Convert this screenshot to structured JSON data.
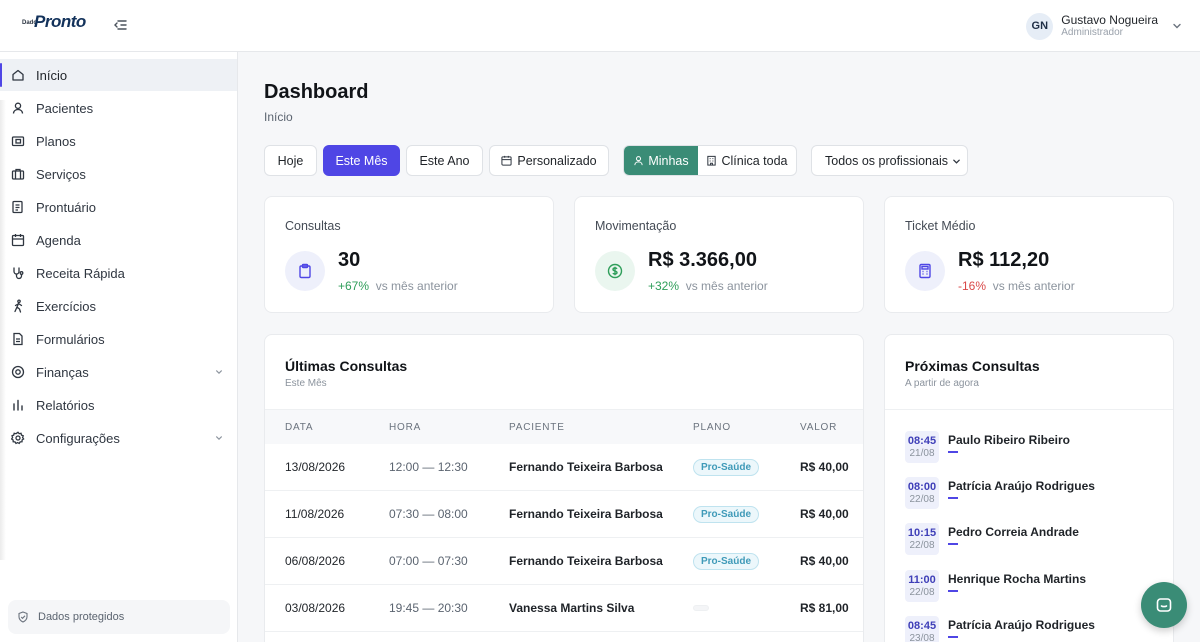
{
  "header": {
    "logo_small": "Dado",
    "logo_text": "Pronto",
    "user_initials": "GN",
    "user_name": "Gustavo Nogueira",
    "user_role": "Administrador"
  },
  "sidebar": {
    "items": [
      {
        "label": "Início",
        "icon": "home-icon",
        "active": true
      },
      {
        "label": "Pacientes",
        "icon": "user-icon"
      },
      {
        "label": "Planos",
        "icon": "wallet-card-icon"
      },
      {
        "label": "Serviços",
        "icon": "briefcase-icon"
      },
      {
        "label": "Prontuário",
        "icon": "record-file-icon"
      },
      {
        "label": "Agenda",
        "icon": "calendar-icon"
      },
      {
        "label": "Receita Rápida",
        "icon": "stethoscope-icon"
      },
      {
        "label": "Exercícios",
        "icon": "walking-icon"
      },
      {
        "label": "Formulários",
        "icon": "form-icon"
      },
      {
        "label": "Finanças",
        "icon": "coin-icon",
        "expandable": true
      },
      {
        "label": "Relatórios",
        "icon": "bar-chart-icon"
      },
      {
        "label": "Configurações",
        "icon": "gear-icon",
        "expandable": true
      }
    ],
    "footer": "Dados protegidos"
  },
  "main": {
    "title": "Dashboard",
    "breadcrumb": "Início",
    "filters": {
      "today": "Hoje",
      "this_month": "Este Mês",
      "this_year": "Este Ano",
      "custom": "Personalizado",
      "mine": "Minhas",
      "whole_clinic": "Clínica toda",
      "professional_select": "Todos os profissionais"
    },
    "kpis": [
      {
        "label": "Consultas",
        "value": "30",
        "change": "+67%",
        "trend": "up",
        "suffix": "vs mês anterior",
        "icon": "clipboard-icon",
        "icon_bg": "#eef0fb",
        "icon_color": "#4f46e5"
      },
      {
        "label": "Movimentação",
        "value": "R$ 3.366,00",
        "change": "+32%",
        "trend": "up",
        "suffix": "vs mês anterior",
        "icon": "dollar-circle-icon",
        "icon_bg": "#eaf6ef",
        "icon_color": "#2f9e5a"
      },
      {
        "label": "Ticket Médio",
        "value": "R$ 112,20",
        "change": "-16%",
        "trend": "down",
        "suffix": "vs mês anterior",
        "icon": "calculator-icon",
        "icon_bg": "#eef0fb",
        "icon_color": "#4f46e5"
      }
    ],
    "recent": {
      "title": "Últimas Consultas",
      "subtitle": "Este Mês",
      "columns": [
        "DATA",
        "HORA",
        "PACIENTE",
        "PLANO",
        "VALOR"
      ],
      "rows": [
        {
          "date": "13/08/2026",
          "time": "12:00 — 12:30",
          "patient": "Fernando Teixeira Barbosa",
          "plan": "Pro-Saúde",
          "value": "R$ 40,00"
        },
        {
          "date": "11/08/2026",
          "time": "07:30 — 08:00",
          "patient": "Fernando Teixeira Barbosa",
          "plan": "Pro-Saúde",
          "value": "R$ 40,00"
        },
        {
          "date": "06/08/2026",
          "time": "07:00 — 07:30",
          "patient": "Fernando Teixeira Barbosa",
          "plan": "Pro-Saúde",
          "value": "R$ 40,00"
        },
        {
          "date": "03/08/2026",
          "time": "19:45 — 20:30",
          "patient": "Vanessa Martins Silva",
          "plan": "",
          "value": "R$ 81,00"
        }
      ]
    },
    "upcoming": {
      "title": "Próximas Consultas",
      "subtitle": "A partir de agora",
      "items": [
        {
          "time": "08:45",
          "date": "21/08",
          "name": "Paulo Ribeiro Ribeiro"
        },
        {
          "time": "08:00",
          "date": "22/08",
          "name": "Patrícia Araújo Rodrigues"
        },
        {
          "time": "10:15",
          "date": "22/08",
          "name": "Pedro Correia Andrade"
        },
        {
          "time": "11:00",
          "date": "22/08",
          "name": "Henrique Rocha Martins"
        },
        {
          "time": "08:45",
          "date": "23/08",
          "name": "Patrícia Araújo Rodrigues"
        }
      ]
    }
  }
}
